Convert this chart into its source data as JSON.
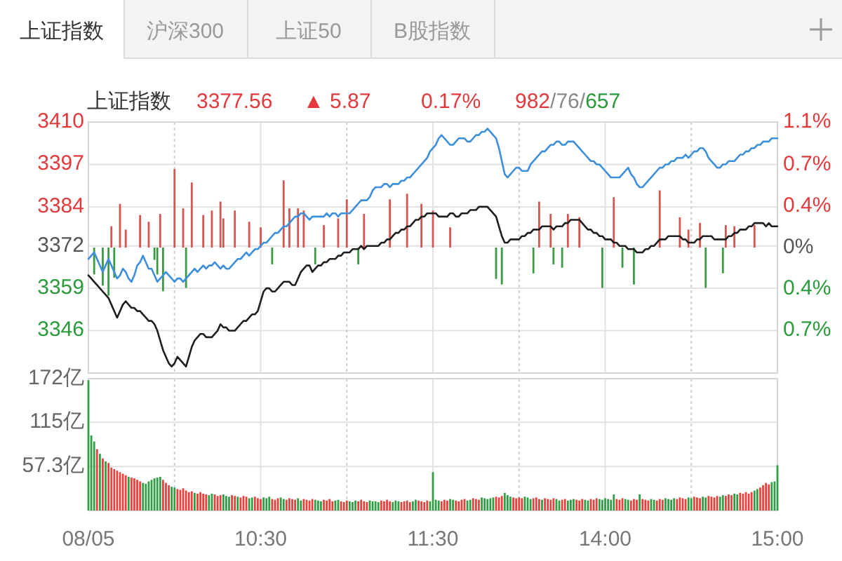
{
  "chart_data": [
    {
      "type": "line",
      "title": "上证指数",
      "annotations": [
        "上证指数",
        "沪深300",
        "上证50",
        "B股指数",
        "3377.56",
        "▲ 5.87",
        "0.17%",
        "982/76/657"
      ],
      "categories": [
        null,
        null,
        null,
        null,
        null,
        null,
        null,
        null,
        null,
        null,
        null,
        null,
        null,
        null,
        null,
        null,
        null,
        null,
        null,
        null,
        null,
        null,
        null,
        null,
        null,
        null,
        null,
        null,
        null,
        null,
        null,
        null,
        null,
        null,
        null,
        null,
        null,
        null,
        null,
        null,
        null,
        null,
        null,
        null,
        null,
        null,
        null,
        null,
        null,
        null,
        null,
        null,
        null,
        null,
        null,
        null,
        null,
        null,
        null,
        null,
        null,
        null,
        null,
        null,
        null,
        null,
        null,
        null,
        null,
        null,
        null,
        null,
        null,
        null,
        null,
        null,
        null,
        null,
        null,
        null,
        null,
        null,
        null,
        null,
        null,
        null,
        null,
        null,
        null,
        null,
        null,
        null,
        null,
        null,
        null,
        null,
        null,
        null,
        null,
        null,
        null,
        null,
        null,
        null,
        null,
        null,
        null,
        null,
        null,
        null,
        null,
        null,
        null,
        null,
        null,
        null,
        null,
        null,
        null,
        null,
        null,
        null,
        null,
        null,
        null,
        null,
        null,
        null,
        null,
        null,
        null,
        null,
        null,
        null,
        null,
        null,
        null,
        null,
        null,
        null,
        null,
        null,
        null,
        null,
        null,
        null,
        null,
        null,
        null,
        null,
        null,
        null,
        null,
        null,
        null,
        null,
        null,
        null,
        null,
        null,
        null,
        null,
        null,
        null,
        null,
        null,
        null,
        null,
        null,
        null,
        null,
        null,
        null,
        null,
        null,
        null,
        null,
        null,
        null,
        null,
        null,
        null,
        null,
        null,
        null,
        null,
        null,
        null,
        null,
        null,
        null,
        null,
        null,
        null,
        null,
        null,
        null,
        null,
        null,
        null,
        null,
        null,
        null,
        null,
        null,
        null,
        null,
        null,
        null,
        null,
        null,
        null,
        null,
        null,
        null,
        null,
        null,
        null,
        null,
        null,
        null,
        null,
        null,
        null,
        null,
        null,
        null,
        null,
        null,
        null,
        null,
        null,
        null,
        null,
        null,
        null,
        null,
        null,
        null,
        null,
        null
      ],
      "ylim": [
        3333,
        3410
      ],
      "yticks": [
        3410,
        3397,
        3384,
        3372,
        3359,
        3346
      ],
      "y2lim": [
        -1.12,
        1.12
      ],
      "y2ticks": [
        {
          "value": 1.12,
          "label": "1.1%"
        },
        {
          "value": 0.74,
          "label": "0.7%"
        },
        {
          "value": 0.37,
          "label": "0.4%"
        },
        {
          "value": 0,
          "label": "0%"
        },
        {
          "value": -0.37,
          "label": "0.4%"
        },
        {
          "value": -0.74,
          "label": "0.7%"
        }
      ],
      "grid": true,
      "tick_labels": "y",
      "series": [
        {
          "type": "bar",
          "axis": "y2",
          "color": "#d9534f",
          "values": [
            null,
            null,
            null,
            null,
            null,
            null,
            null,
            null,
            0.19,
            null,
            null,
            0.39,
            null,
            0.16,
            null,
            null,
            null,
            null,
            0.29,
            null,
            null,
            0.23,
            null,
            null,
            null,
            0.3,
            null,
            null,
            null,
            null,
            0.7,
            null,
            null,
            0.35,
            null,
            null,
            0.58,
            null,
            null,
            null,
            0.29,
            null,
            null,
            0.33,
            null,
            null,
            0.41,
            0.26,
            null,
            null,
            null,
            0.33,
            null,
            null,
            null,
            null,
            0.23,
            null,
            null,
            null,
            0.18,
            null,
            null,
            null,
            null,
            null,
            null,
            null,
            0.6,
            null,
            0.35,
            null,
            null,
            0.35,
            null,
            0.33,
            null,
            null,
            null,
            null,
            null,
            null,
            0.2,
            null,
            null,
            null,
            null,
            0.26,
            null,
            null,
            0.43,
            null,
            null,
            null,
            null,
            null,
            0.3,
            null,
            null,
            null,
            null,
            null,
            null,
            null,
            null,
            0.43,
            null,
            null,
            null,
            null,
            null,
            0.48,
            null,
            null,
            null,
            null,
            0.39,
            null,
            null,
            null,
            0.33,
            null,
            null,
            null,
            null,
            null,
            0.18,
            null,
            null,
            null,
            null,
            null,
            null,
            null,
            null,
            null,
            null,
            null,
            null,
            null,
            null,
            null,
            null,
            null,
            null,
            null,
            null,
            null,
            null,
            null,
            null,
            null,
            null,
            null,
            null,
            null,
            null,
            0.41,
            null,
            null,
            null,
            0.3,
            null,
            null,
            null,
            null,
            null,
            0.3,
            null,
            null,
            null,
            0.27,
            null,
            null,
            null,
            null,
            null,
            null,
            null,
            null,
            null,
            null,
            null,
            0.45,
            null,
            null,
            null,
            null,
            null,
            null,
            null,
            null,
            null,
            null,
            null,
            null,
            null,
            null,
            null,
            0.51,
            null,
            null,
            null,
            null,
            null,
            null,
            0.27,
            null,
            null,
            0.16,
            null,
            null,
            null,
            0.22,
            null,
            null,
            null,
            null,
            null,
            null,
            null,
            null,
            0.2,
            null,
            null,
            0.19,
            null,
            null,
            null,
            null,
            null,
            null,
            0.2,
            null,
            null,
            null,
            null,
            null,
            null,
            null,
            null
          ]
        },
        {
          "type": "bar",
          "axis": "y2",
          "color": "#3c9a45",
          "values": [
            null,
            null,
            -0.24,
            null,
            null,
            -0.34,
            null,
            -0.43,
            null,
            -0.27,
            null,
            null,
            null,
            null,
            null,
            null,
            null,
            null,
            null,
            null,
            null,
            null,
            null,
            -0.11,
            -0.24,
            null,
            -0.39,
            null,
            null,
            null,
            null,
            null,
            null,
            null,
            -0.36,
            null,
            null,
            null,
            null,
            null,
            null,
            null,
            null,
            null,
            null,
            null,
            null,
            null,
            null,
            null,
            null,
            null,
            null,
            null,
            null,
            null,
            null,
            null,
            null,
            null,
            null,
            null,
            null,
            null,
            -0.15,
            null,
            null,
            null,
            null,
            null,
            null,
            null,
            null,
            null,
            null,
            null,
            null,
            null,
            null,
            -0.15,
            null,
            null,
            null,
            null,
            null,
            null,
            null,
            null,
            null,
            null,
            null,
            null,
            null,
            null,
            -0.15,
            null,
            null,
            null,
            null,
            null,
            null,
            null,
            null,
            null,
            null,
            null,
            null,
            null,
            null,
            null,
            null,
            null,
            null,
            null,
            null,
            null,
            null,
            null,
            null,
            null,
            null,
            null,
            null,
            null,
            null,
            null,
            null,
            null,
            null,
            null,
            null,
            null,
            null,
            null,
            null,
            null,
            null,
            null,
            null,
            null,
            null,
            null,
            -0.28,
            null,
            -0.33,
            null,
            null,
            null,
            null,
            null,
            null,
            null,
            null,
            null,
            null,
            -0.23,
            null,
            null,
            null,
            null,
            null,
            null,
            -0.15,
            null,
            null,
            -0.18,
            null,
            null,
            null,
            null,
            null,
            null,
            null,
            null,
            null,
            null,
            null,
            null,
            null,
            -0.36,
            null,
            null,
            null,
            null,
            null,
            null,
            -0.18,
            null,
            null,
            null,
            -0.33,
            null,
            null,
            null,
            null,
            null,
            null,
            null,
            null,
            null,
            null,
            null,
            null,
            null,
            null,
            null,
            null,
            null,
            null,
            null,
            null,
            null,
            null,
            null,
            null,
            -0.36,
            null,
            null,
            null,
            null,
            null,
            -0.23,
            null,
            null,
            null,
            null,
            null,
            null,
            null,
            null,
            null,
            null,
            null,
            null,
            null,
            null,
            null,
            null,
            null,
            null,
            null
          ]
        },
        {
          "color": "#3d8fdb",
          "values": [
            3368,
            3369,
            3370,
            3368,
            3366,
            3364,
            3366,
            3368,
            3366,
            3364,
            3362,
            3363,
            3365,
            3364,
            3362,
            3361,
            3363,
            3366,
            3367,
            3369,
            3367,
            3365,
            3365,
            3363,
            3361,
            3362,
            3363,
            3364,
            3363,
            3362,
            3361,
            3362,
            3362,
            3361,
            3362,
            3363,
            3364,
            3365,
            3364,
            3365,
            3366,
            3365,
            3366,
            3366,
            3367,
            3366,
            3365,
            3366,
            3365,
            3365,
            3366,
            3367,
            3368,
            3368,
            3369,
            3370,
            3369,
            3370,
            3371,
            3371,
            3372,
            3373,
            3373,
            3374,
            3375,
            3376,
            3376,
            3377,
            3378,
            3378,
            3379,
            3380,
            3381,
            3381,
            3382,
            3382,
            3381,
            3380,
            3381,
            3381,
            3381,
            3381,
            3381,
            3382,
            3381,
            3382,
            3382,
            3381,
            3382,
            3382,
            3382,
            3382,
            3383,
            3384,
            3385,
            3386,
            3386,
            3386,
            3387,
            3389,
            3390,
            3390,
            3390,
            3391,
            3391,
            3390,
            3391,
            3391,
            3391,
            3392,
            3392,
            3393,
            3393,
            3394,
            3395,
            3396,
            3397,
            3398,
            3399,
            3401,
            3402,
            3403,
            3405,
            3406,
            3405,
            3404,
            3403,
            3403,
            3404,
            3405,
            3405,
            3405,
            3404,
            3404,
            3405,
            3406,
            3406,
            3407,
            3407,
            3408,
            3407,
            3406,
            3405,
            3402,
            3398,
            3394,
            3393,
            3394,
            3395,
            3396,
            3396,
            3395,
            3395,
            3395,
            3397,
            3398,
            3399,
            3400,
            3401,
            3401,
            3402,
            3403,
            3403,
            3404,
            3404,
            3403,
            3403,
            3404,
            3404,
            3404,
            3403,
            3402,
            3401,
            3400,
            3399,
            3398,
            3398,
            3397,
            3397,
            3396,
            3395,
            3394,
            3393,
            3393,
            3393,
            3393,
            3394,
            3395,
            3396,
            3394,
            3393,
            3391,
            3390,
            3390,
            3391,
            3392,
            3393,
            3394,
            3395,
            3396,
            3396,
            3397,
            3397,
            3398,
            3398,
            3399,
            3399,
            3399,
            3400,
            3399,
            3400,
            3401,
            3401,
            3402,
            3402,
            3401,
            3399,
            3398,
            3397,
            3396,
            3396,
            3397,
            3397,
            3398,
            3398,
            3398,
            3399,
            3400,
            3400,
            3401,
            3401,
            3402,
            3402,
            3403,
            3403,
            3404,
            3404,
            3404,
            3405,
            3405,
            3405
          ]
        },
        {
          "color": "#1e1e1e",
          "values": [
            3363,
            3362,
            3361,
            3360,
            3359,
            3358,
            3357,
            3356,
            3354,
            3352,
            3350,
            3352,
            3354,
            3355,
            3354,
            3353,
            3353,
            3352,
            3352,
            3351,
            3350,
            3349,
            3349,
            3348,
            3346,
            3343,
            3340,
            3338,
            3336,
            3335,
            3336,
            3338,
            3337,
            3336,
            3335,
            3338,
            3341,
            3343,
            3344,
            3345,
            3345,
            3344,
            3344,
            3344,
            3345,
            3346,
            3348,
            3347,
            3347,
            3346,
            3346,
            3346,
            3347,
            3348,
            3349,
            3349,
            3350,
            3351,
            3351,
            3352,
            3355,
            3358,
            3359,
            3359,
            3358,
            3358,
            3359,
            3360,
            3361,
            3361,
            3361,
            3360,
            3360,
            3362,
            3364,
            3365,
            3366,
            3366,
            3364,
            3365,
            3366,
            3366,
            3367,
            3367,
            3368,
            3368,
            3368,
            3369,
            3369,
            3370,
            3370,
            3370,
            3371,
            3371,
            3371,
            3372,
            3371,
            3372,
            3372,
            3372,
            3372,
            3372,
            3373,
            3373,
            3374,
            3374,
            3375,
            3376,
            3376,
            3377,
            3377,
            3378,
            3378,
            3379,
            3380,
            3380,
            3381,
            3381,
            3382,
            3382,
            3382,
            3382,
            3381,
            3381,
            3381,
            3381,
            3382,
            3382,
            3381,
            3381,
            3382,
            3382,
            3382,
            3383,
            3383,
            3383,
            3384,
            3384,
            3384,
            3384,
            3383,
            3382,
            3381,
            3378,
            3375,
            3373,
            3373,
            3374,
            3374,
            3374,
            3374,
            3375,
            3375,
            3376,
            3376,
            3377,
            3377,
            3377,
            3378,
            3378,
            3378,
            3378,
            3377,
            3378,
            3378,
            3378,
            3379,
            3379,
            3380,
            3380,
            3380,
            3380,
            3379,
            3378,
            3377,
            3377,
            3376,
            3376,
            3375,
            3375,
            3374,
            3374,
            3374,
            3373,
            3373,
            3372,
            3372,
            3372,
            3371,
            3371,
            3371,
            3370,
            3370,
            3370,
            3371,
            3371,
            3372,
            3372,
            3373,
            3374,
            3374,
            3374,
            3375,
            3375,
            3375,
            3375,
            3375,
            3374,
            3374,
            3373,
            3373,
            3373,
            3374,
            3374,
            3375,
            3375,
            3375,
            3375,
            3374,
            3374,
            3374,
            3374,
            3374,
            3375,
            3375,
            3376,
            3376,
            3377,
            3377,
            3377,
            3378,
            3378,
            3379,
            3379,
            3379,
            3379,
            3378,
            3379,
            3378,
            3378,
            3378
          ]
        }
      ]
    },
    {
      "type": "bar",
      "categories": [
        "08/05",
        null,
        null,
        null,
        null,
        null,
        null,
        null,
        null,
        null,
        null,
        null,
        null,
        null,
        null,
        null,
        null,
        null,
        null,
        null,
        null,
        null,
        null,
        null,
        null,
        null,
        null,
        null,
        null,
        null,
        null,
        null,
        null,
        null,
        null,
        null,
        null,
        null,
        null,
        null,
        null,
        null,
        null,
        null,
        null,
        null,
        null,
        null,
        null,
        null,
        null,
        null,
        null,
        null,
        null,
        null,
        null,
        null,
        null,
        null,
        "10:30",
        null,
        null,
        null,
        null,
        null,
        null,
        null,
        null,
        null,
        null,
        null,
        null,
        null,
        null,
        null,
        null,
        null,
        null,
        null,
        null,
        null,
        null,
        null,
        null,
        null,
        null,
        null,
        null,
        null,
        null,
        null,
        null,
        null,
        null,
        null,
        null,
        null,
        null,
        null,
        null,
        null,
        null,
        null,
        null,
        null,
        null,
        null,
        null,
        null,
        null,
        null,
        null,
        null,
        null,
        null,
        null,
        null,
        null,
        null,
        "11:30",
        null,
        null,
        null,
        null,
        null,
        null,
        null,
        null,
        null,
        null,
        null,
        null,
        null,
        null,
        null,
        null,
        null,
        null,
        null,
        null,
        null,
        null,
        null,
        null,
        null,
        null,
        null,
        null,
        null,
        null,
        null,
        null,
        null,
        null,
        null,
        null,
        null,
        null,
        null,
        null,
        null,
        null,
        null,
        null,
        null,
        null,
        null,
        null,
        null,
        null,
        null,
        null,
        null,
        null,
        null,
        null,
        null,
        null,
        null,
        "14:00",
        null,
        null,
        null,
        null,
        null,
        null,
        null,
        null,
        null,
        null,
        null,
        null,
        null,
        null,
        null,
        null,
        null,
        null,
        null,
        null,
        null,
        null,
        null,
        null,
        null,
        null,
        null,
        null,
        null,
        null,
        null,
        null,
        null,
        null,
        null,
        null,
        null,
        null,
        null,
        null,
        null,
        null,
        null,
        null,
        null,
        null,
        null,
        null,
        null,
        null,
        null,
        null,
        null,
        null,
        null,
        null,
        null,
        null,
        null,
        "15:00"
      ],
      "ylim": [
        0,
        172
      ],
      "yticks": [
        {
          "value": 57.3,
          "label": "57.3亿"
        },
        {
          "value": 115,
          "label": "115亿"
        },
        {
          "value": 172,
          "label": "172亿"
        }
      ],
      "grid": true,
      "values": [
        170,
        98,
        90,
        80,
        74,
        68,
        64,
        62,
        56,
        54,
        52,
        50,
        48,
        46,
        44,
        43,
        42,
        40,
        38,
        36,
        35,
        38,
        40,
        42,
        43,
        44,
        40,
        36,
        33,
        31,
        30,
        28,
        27,
        29,
        26,
        24,
        25,
        23,
        22,
        24,
        22,
        21,
        20,
        22,
        21,
        19,
        20,
        21,
        19,
        18,
        20,
        19,
        18,
        17,
        19,
        18,
        16,
        17,
        18,
        16,
        15,
        17,
        16,
        18,
        15,
        14,
        16,
        17,
        15,
        14,
        16,
        15,
        14,
        16,
        13,
        15,
        14,
        13,
        15,
        14,
        13,
        12,
        14,
        13,
        15,
        12,
        13,
        14,
        12,
        11,
        13,
        12,
        11,
        13,
        12,
        14,
        12,
        11,
        13,
        12,
        12,
        11,
        13,
        12,
        14,
        12,
        11,
        13,
        12,
        11,
        12,
        13,
        11,
        12,
        14,
        13,
        12,
        11,
        13,
        12,
        50,
        14,
        13,
        12,
        14,
        13,
        15,
        14,
        13,
        12,
        14,
        15,
        13,
        14,
        16,
        15,
        14,
        17,
        16,
        15,
        16,
        17,
        18,
        17,
        19,
        23,
        20,
        18,
        17,
        16,
        17,
        16,
        18,
        17,
        15,
        16,
        17,
        15,
        14,
        16,
        15,
        14,
        16,
        15,
        13,
        14,
        15,
        13,
        14,
        15,
        14,
        13,
        15,
        14,
        13,
        15,
        14,
        16,
        15,
        14,
        16,
        15,
        14,
        21,
        15,
        14,
        16,
        15,
        14,
        13,
        15,
        14,
        21,
        15,
        14,
        13,
        15,
        14,
        13,
        15,
        14,
        16,
        15,
        14,
        16,
        15,
        17,
        16,
        15,
        17,
        16,
        18,
        17,
        16,
        18,
        17,
        19,
        18,
        17,
        19,
        18,
        20,
        19,
        21,
        20,
        22,
        21,
        23,
        22,
        24,
        22,
        24,
        26,
        28,
        30,
        33,
        36,
        34,
        37,
        38,
        59
      ],
      "colors": [
        "#2f9e44",
        "#2f9e44",
        "#2f9e44",
        "#e8413b",
        "#2f9e44",
        "#e8413b",
        "#2f9e44",
        "#e8413b",
        "#e8413b",
        "#e8413b",
        "#e8413b",
        "#e8413b",
        "#e8413b",
        "#e8413b",
        "#2f9e44",
        "#e8413b",
        "#e8413b",
        "#e8413b",
        "#e8413b",
        "#2f9e44",
        "#2f9e44",
        "#2f9e44",
        "#2f9e44",
        "#2f9e44",
        "#2f9e44",
        "#2f9e44",
        "#e8413b",
        "#e8413b",
        "#e8413b",
        "#2f9e44",
        "#2f9e44",
        "#e8413b",
        "#e8413b",
        "#e8413b",
        "#e8413b",
        "#e8413b",
        "#e8413b",
        "#2f9e44",
        "#e8413b",
        "#e8413b",
        "#e8413b",
        "#e8413b",
        "#2f9e44",
        "#2f9e44",
        "#e8413b",
        "#e8413b",
        "#e8413b",
        "#2f9e44",
        "#2f9e44",
        "#2f9e44",
        "#e8413b",
        "#e8413b",
        "#2f9e44",
        "#e8413b",
        "#e8413b",
        "#e8413b",
        "#2f9e44",
        "#2f9e44",
        "#e8413b",
        "#e8413b",
        "#e8413b",
        "#2f9e44",
        "#2f9e44",
        "#2f9e44",
        "#e8413b",
        "#e8413b",
        "#e8413b",
        "#2f9e44",
        "#2f9e44",
        "#e8413b",
        "#e8413b",
        "#e8413b",
        "#e8413b",
        "#2f9e44",
        "#2f9e44",
        "#e8413b",
        "#e8413b",
        "#e8413b",
        "#e8413b",
        "#2f9e44",
        "#2f9e44",
        "#2f9e44",
        "#e8413b",
        "#e8413b",
        "#e8413b",
        "#e8413b",
        "#2f9e44",
        "#2f9e44",
        "#e8413b",
        "#e8413b",
        "#e8413b",
        "#2f9e44",
        "#2f9e44",
        "#2f9e44",
        "#e8413b",
        "#e8413b",
        "#e8413b",
        "#e8413b",
        "#2f9e44",
        "#2f9e44",
        "#2f9e44",
        "#2f9e44",
        "#e8413b",
        "#e8413b",
        "#e8413b",
        "#e8413b",
        "#2f9e44",
        "#2f9e44",
        "#2f9e44",
        "#e8413b",
        "#e8413b",
        "#e8413b",
        "#e8413b",
        "#2f9e44",
        "#2f9e44",
        "#e8413b",
        "#e8413b",
        "#e8413b",
        "#e8413b",
        "#2f9e44",
        "#2f9e44",
        "#2f9e44",
        "#2f9e44",
        "#e8413b",
        "#e8413b",
        "#e8413b",
        "#2f9e44",
        "#2f9e44",
        "#e8413b",
        "#e8413b",
        "#e8413b",
        "#e8413b",
        "#2f9e44",
        "#2f9e44",
        "#e8413b",
        "#e8413b",
        "#e8413b",
        "#2f9e44",
        "#2f9e44",
        "#2f9e44",
        "#2f9e44",
        "#2f9e44",
        "#e8413b",
        "#e8413b",
        "#e8413b",
        "#2f9e44",
        "#2f9e44",
        "#2f9e44",
        "#e8413b",
        "#e8413b",
        "#e8413b",
        "#e8413b",
        "#2f9e44",
        "#2f9e44",
        "#2f9e44",
        "#e8413b",
        "#e8413b",
        "#e8413b",
        "#2f9e44",
        "#e8413b",
        "#e8413b",
        "#e8413b",
        "#e8413b",
        "#2f9e44",
        "#2f9e44",
        "#e8413b",
        "#e8413b",
        "#2f9e44",
        "#2f9e44",
        "#2f9e44",
        "#e8413b",
        "#e8413b",
        "#e8413b",
        "#2f9e44",
        "#2f9e44",
        "#e8413b",
        "#e8413b",
        "#e8413b",
        "#2f9e44",
        "#2f9e44",
        "#2f9e44",
        "#2f9e44",
        "#2f9e44",
        "#2f9e44",
        "#e8413b",
        "#e8413b",
        "#e8413b",
        "#2f9e44",
        "#2f9e44",
        "#e8413b",
        "#e8413b",
        "#e8413b",
        "#2f9e44",
        "#e8413b",
        "#e8413b",
        "#e8413b",
        "#2f9e44",
        "#2f9e44",
        "#e8413b",
        "#e8413b",
        "#e8413b",
        "#2f9e44",
        "#2f9e44",
        "#2f9e44",
        "#2f9e44",
        "#e8413b",
        "#e8413b",
        "#e8413b",
        "#e8413b",
        "#2f9e44",
        "#2f9e44",
        "#e8413b",
        "#e8413b",
        "#e8413b",
        "#2f9e44",
        "#2f9e44",
        "#e8413b",
        "#e8413b",
        "#e8413b",
        "#e8413b",
        "#2f9e44",
        "#2f9e44",
        "#e8413b",
        "#e8413b",
        "#e8413b",
        "#2f9e44",
        "#2f9e44",
        "#e8413b",
        "#e8413b",
        "#e8413b",
        "#e8413b",
        "#e8413b",
        "#2f9e44",
        "#2f9e44",
        "#e8413b",
        "#e8413b",
        "#e8413b",
        "#e8413b",
        "#2f9e44",
        "#2f9e44",
        "#2f9e44"
      ]
    }
  ]
}
